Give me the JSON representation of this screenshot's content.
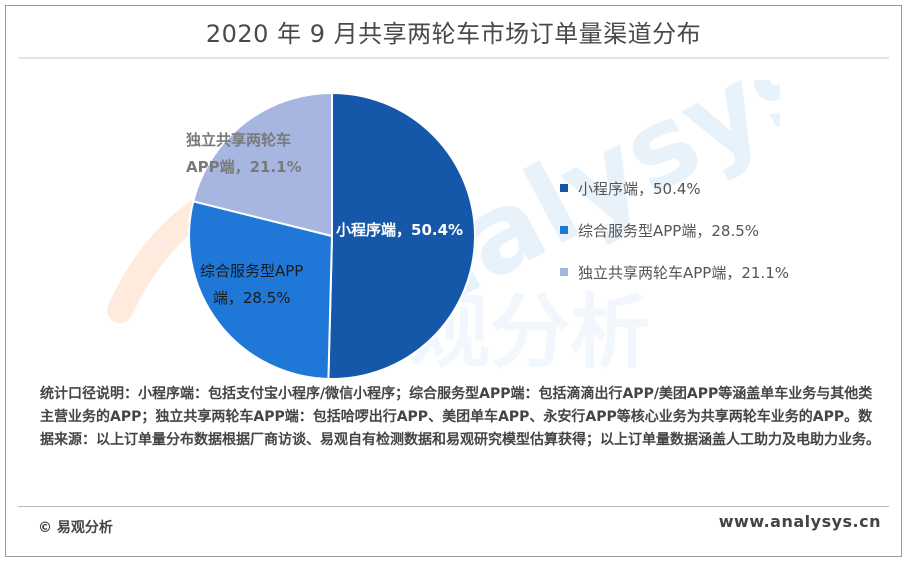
{
  "title": "2020 年 9 月共享两轮车市场订单量渠道分布",
  "chart_data": {
    "type": "pie",
    "title": "2020 年 9 月共享两轮车市场订单量渠道分布",
    "series": [
      {
        "name": "小程序端",
        "value": 50.4,
        "color": "#1557a8",
        "label_line1": "小程序端，50.4%",
        "label_line2": ""
      },
      {
        "name": "综合服务型APP端",
        "value": 28.5,
        "color": "#1f78d8",
        "label_line1": "综合服务型APP",
        "label_line2": "端，28.5%"
      },
      {
        "name": "独立共享两轮车APP端",
        "value": 21.1,
        "color": "#a6b6e0",
        "label_line1": "独立共享两轮车",
        "label_line2": "APP端，21.1%"
      }
    ],
    "legend": [
      {
        "label": "小程序端，50.4%",
        "color": "#1557a8"
      },
      {
        "label": "综合服务型APP端，28.5%",
        "color": "#1f78d8"
      },
      {
        "label": "独立共享两轮车APP端，21.1%",
        "color": "#a6b6e0"
      }
    ],
    "legend_position": "right"
  },
  "note": "统计口径说明：小程序端：包括支付宝小程序/微信小程序；综合服务型APP端：包括滴滴出行APP/美团APP等涵盖单车业务与其他类主营业务的APP；独立共享两轮车APP端：包括哈啰出行APP、美团单车APP、永安行APP等核心业务为共享两轮车业务的APP。数据来源：以上订单量分布数据根据厂商访谈、易观自有检测数据和易观研究模型估算获得；以上订单量数据涵盖人工助力及电助力业务。",
  "copyright": "© 易观分析",
  "site": "www.analysys.cn",
  "watermark": {
    "latin": "analysys",
    "cjk": "易观分析"
  }
}
